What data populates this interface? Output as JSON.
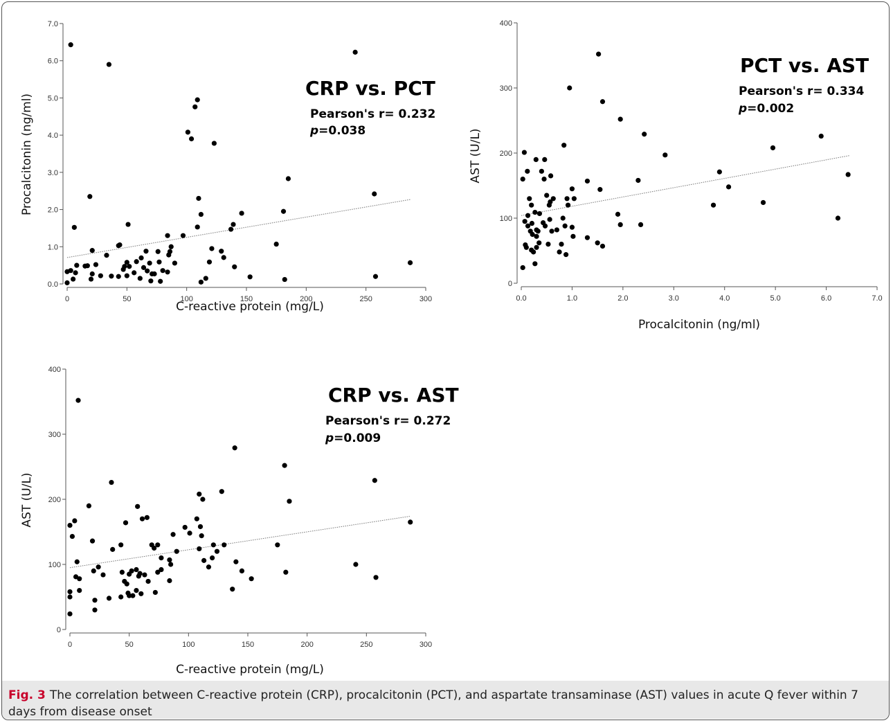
{
  "caption": {
    "label": "Fig. 3",
    "text": "The correlation between C-reactive protein (CRP), procalcitonin (PCT), and aspartate transaminase (AST) values in acute Q fever within 7 days from disease onset"
  },
  "chart_data": [
    {
      "id": "crp-pct",
      "type": "scatter",
      "title": "CRP vs. PCT",
      "stat_label": "Pearson's r= 0.232",
      "p_prefix": "p",
      "p_suffix": "=0.038",
      "xlabel": "C-reactive protein (mg/L)",
      "ylabel": "Procalcitonin (ng/ml)",
      "xlim": [
        0,
        300
      ],
      "ylim": [
        0,
        7
      ],
      "xticks": [
        "0",
        "50",
        "100",
        "150",
        "200",
        "250",
        "300"
      ],
      "yticks": [
        "0.0",
        "1.0",
        "2.0",
        "3.0",
        "4.0",
        "5.0",
        "6.0",
        "7.0"
      ],
      "grid": false,
      "trendline": [
        [
          0,
          0.71
        ],
        [
          287,
          2.27
        ]
      ],
      "points": [
        [
          0,
          0.03
        ],
        [
          0,
          0.33
        ],
        [
          3,
          6.43
        ],
        [
          3,
          0.36
        ],
        [
          5,
          0.13
        ],
        [
          6,
          1.52
        ],
        [
          7,
          0.3
        ],
        [
          8,
          0.5
        ],
        [
          15,
          0.48
        ],
        [
          17,
          0.49
        ],
        [
          19,
          2.35
        ],
        [
          20,
          0.13
        ],
        [
          21,
          0.9
        ],
        [
          21,
          0.27
        ],
        [
          24,
          0.52
        ],
        [
          28,
          0.22
        ],
        [
          33,
          0.77
        ],
        [
          35,
          5.9
        ],
        [
          37,
          0.21
        ],
        [
          43,
          0.2
        ],
        [
          43,
          1.03
        ],
        [
          44,
          1.05
        ],
        [
          47,
          0.39
        ],
        [
          48,
          0.47
        ],
        [
          50,
          0.22
        ],
        [
          50,
          0.58
        ],
        [
          51,
          1.6
        ],
        [
          52,
          0.47
        ],
        [
          56,
          0.3
        ],
        [
          58,
          0.6
        ],
        [
          61,
          0.15
        ],
        [
          62,
          0.7
        ],
        [
          64,
          0.44
        ],
        [
          66,
          0.88
        ],
        [
          67,
          0.35
        ],
        [
          69,
          0.56
        ],
        [
          70,
          0.08
        ],
        [
          71,
          0.27
        ],
        [
          73,
          0.27
        ],
        [
          76,
          0.87
        ],
        [
          77,
          0.59
        ],
        [
          78,
          0.07
        ],
        [
          80,
          0.36
        ],
        [
          84,
          1.3
        ],
        [
          84,
          0.32
        ],
        [
          85,
          0.78
        ],
        [
          86,
          0.87
        ],
        [
          87,
          1.0
        ],
        [
          90,
          0.56
        ],
        [
          97,
          1.3
        ],
        [
          101,
          4.08
        ],
        [
          104,
          3.9
        ],
        [
          107,
          4.76
        ],
        [
          109,
          4.95
        ],
        [
          109,
          1.53
        ],
        [
          110,
          2.3
        ],
        [
          112,
          1.87
        ],
        [
          112,
          0.05
        ],
        [
          116,
          0.15
        ],
        [
          119,
          0.59
        ],
        [
          121,
          0.95
        ],
        [
          123,
          3.78
        ],
        [
          129,
          0.88
        ],
        [
          131,
          0.71
        ],
        [
          137,
          1.47
        ],
        [
          139,
          1.6
        ],
        [
          140,
          0.46
        ],
        [
          146,
          1.9
        ],
        [
          153,
          0.19
        ],
        [
          175,
          1.07
        ],
        [
          181,
          1.95
        ],
        [
          182,
          0.12
        ],
        [
          185,
          2.83
        ],
        [
          241,
          6.23
        ],
        [
          257,
          2.42
        ],
        [
          258,
          0.2
        ],
        [
          287,
          0.57
        ]
      ]
    },
    {
      "id": "pct-ast",
      "type": "scatter",
      "title": "PCT vs. AST",
      "stat_label": "Pearson's r= 0.334",
      "p_prefix": "p",
      "p_suffix": "=0.002",
      "xlabel": "Procalcitonin (ng/ml)",
      "ylabel": "AST (U/L)",
      "xlim": [
        0,
        7
      ],
      "ylim": [
        0,
        400
      ],
      "xticks": [
        "0.0",
        "1.0",
        "2.0",
        "3.0",
        "4.0",
        "5.0",
        "6.0",
        "7.0"
      ],
      "yticks": [
        "0",
        "100",
        "200",
        "300",
        "400"
      ],
      "grid": false,
      "trendline": [
        [
          0,
          104
        ],
        [
          6.45,
          196
        ]
      ],
      "points": [
        [
          0.03,
          24
        ],
        [
          0.03,
          160
        ],
        [
          0.06,
          201
        ],
        [
          0.07,
          95
        ],
        [
          0.08,
          59
        ],
        [
          0.1,
          55
        ],
        [
          0.12,
          172
        ],
        [
          0.13,
          104
        ],
        [
          0.13,
          88
        ],
        [
          0.16,
          130
        ],
        [
          0.18,
          80
        ],
        [
          0.2,
          120
        ],
        [
          0.2,
          51
        ],
        [
          0.21,
          92
        ],
        [
          0.22,
          75
        ],
        [
          0.24,
          48
        ],
        [
          0.27,
          109
        ],
        [
          0.27,
          30
        ],
        [
          0.29,
          190
        ],
        [
          0.3,
          82
        ],
        [
          0.3,
          72
        ],
        [
          0.3,
          55
        ],
        [
          0.33,
          80
        ],
        [
          0.35,
          62
        ],
        [
          0.36,
          107
        ],
        [
          0.4,
          172
        ],
        [
          0.43,
          93
        ],
        [
          0.45,
          160
        ],
        [
          0.46,
          190
        ],
        [
          0.47,
          88
        ],
        [
          0.5,
          135
        ],
        [
          0.53,
          60
        ],
        [
          0.55,
          120
        ],
        [
          0.56,
          98
        ],
        [
          0.57,
          125
        ],
        [
          0.58,
          165
        ],
        [
          0.6,
          80
        ],
        [
          0.63,
          130
        ],
        [
          0.7,
          82
        ],
        [
          0.75,
          48
        ],
        [
          0.79,
          60
        ],
        [
          0.82,
          100
        ],
        [
          0.84,
          212
        ],
        [
          0.86,
          88
        ],
        [
          0.88,
          44
        ],
        [
          0.9,
          130
        ],
        [
          0.92,
          120
        ],
        [
          0.95,
          300
        ],
        [
          1.0,
          86
        ],
        [
          1.0,
          145
        ],
        [
          1.02,
          72
        ],
        [
          1.04,
          130
        ],
        [
          1.3,
          157
        ],
        [
          1.3,
          70
        ],
        [
          1.5,
          62
        ],
        [
          1.52,
          352
        ],
        [
          1.55,
          144
        ],
        [
          1.6,
          279
        ],
        [
          1.6,
          57
        ],
        [
          1.9,
          106
        ],
        [
          1.95,
          90
        ],
        [
          1.95,
          252
        ],
        [
          2.3,
          158
        ],
        [
          2.35,
          90
        ],
        [
          2.42,
          229
        ],
        [
          2.83,
          197
        ],
        [
          3.78,
          120
        ],
        [
          3.9,
          171
        ],
        [
          4.08,
          148
        ],
        [
          4.76,
          124
        ],
        [
          4.95,
          208
        ],
        [
          5.9,
          226
        ],
        [
          6.23,
          100
        ],
        [
          6.43,
          167
        ]
      ]
    },
    {
      "id": "crp-ast",
      "type": "scatter",
      "title": "CRP vs. AST",
      "stat_label": "Pearson's r= 0.272",
      "p_prefix": "p",
      "p_suffix": "=0.009",
      "xlabel": "C-reactive protein (mg/L)",
      "ylabel": "AST (U/L)",
      "xlim": [
        0,
        300
      ],
      "ylim": [
        0,
        400
      ],
      "xticks": [
        "0",
        "50",
        "100",
        "150",
        "200",
        "250",
        "300"
      ],
      "yticks": [
        "0",
        "100",
        "200",
        "300",
        "400"
      ],
      "grid": false,
      "trendline": [
        [
          0,
          95
        ],
        [
          287,
          174
        ]
      ],
      "points": [
        [
          0,
          24
        ],
        [
          0,
          50
        ],
        [
          0,
          58
        ],
        [
          0,
          160
        ],
        [
          2,
          143
        ],
        [
          4,
          167
        ],
        [
          5,
          81
        ],
        [
          6,
          104
        ],
        [
          7,
          352
        ],
        [
          8,
          60
        ],
        [
          8,
          78
        ],
        [
          16,
          190
        ],
        [
          19,
          136
        ],
        [
          20,
          90
        ],
        [
          21,
          30
        ],
        [
          21,
          45
        ],
        [
          24,
          96
        ],
        [
          28,
          84
        ],
        [
          33,
          48
        ],
        [
          35,
          226
        ],
        [
          36,
          123
        ],
        [
          43,
          50
        ],
        [
          43,
          130
        ],
        [
          44,
          88
        ],
        [
          46,
          74
        ],
        [
          47,
          164
        ],
        [
          48,
          70
        ],
        [
          49,
          56
        ],
        [
          50,
          85
        ],
        [
          50,
          52
        ],
        [
          52,
          90
        ],
        [
          53,
          52
        ],
        [
          56,
          92
        ],
        [
          56,
          60
        ],
        [
          57,
          189
        ],
        [
          58,
          82
        ],
        [
          59,
          86
        ],
        [
          60,
          55
        ],
        [
          61,
          170
        ],
        [
          63,
          84
        ],
        [
          65,
          172
        ],
        [
          66,
          74
        ],
        [
          69,
          130
        ],
        [
          71,
          125
        ],
        [
          72,
          57
        ],
        [
          74,
          130
        ],
        [
          74,
          88
        ],
        [
          77,
          110
        ],
        [
          77,
          92
        ],
        [
          84,
          75
        ],
        [
          84,
          107
        ],
        [
          85,
          100
        ],
        [
          87,
          146
        ],
        [
          90,
          120
        ],
        [
          97,
          157
        ],
        [
          101,
          148
        ],
        [
          107,
          170
        ],
        [
          109,
          124
        ],
        [
          109,
          208
        ],
        [
          110,
          158
        ],
        [
          111,
          144
        ],
        [
          112,
          200
        ],
        [
          113,
          106
        ],
        [
          117,
          96
        ],
        [
          120,
          110
        ],
        [
          121,
          130
        ],
        [
          124,
          120
        ],
        [
          128,
          212
        ],
        [
          130,
          130
        ],
        [
          137,
          62
        ],
        [
          139,
          279
        ],
        [
          140,
          104
        ],
        [
          145,
          90
        ],
        [
          153,
          78
        ],
        [
          175,
          130
        ],
        [
          181,
          252
        ],
        [
          182,
          88
        ],
        [
          185,
          197
        ],
        [
          241,
          100
        ],
        [
          257,
          229
        ],
        [
          258,
          80
        ],
        [
          287,
          165
        ]
      ]
    }
  ]
}
